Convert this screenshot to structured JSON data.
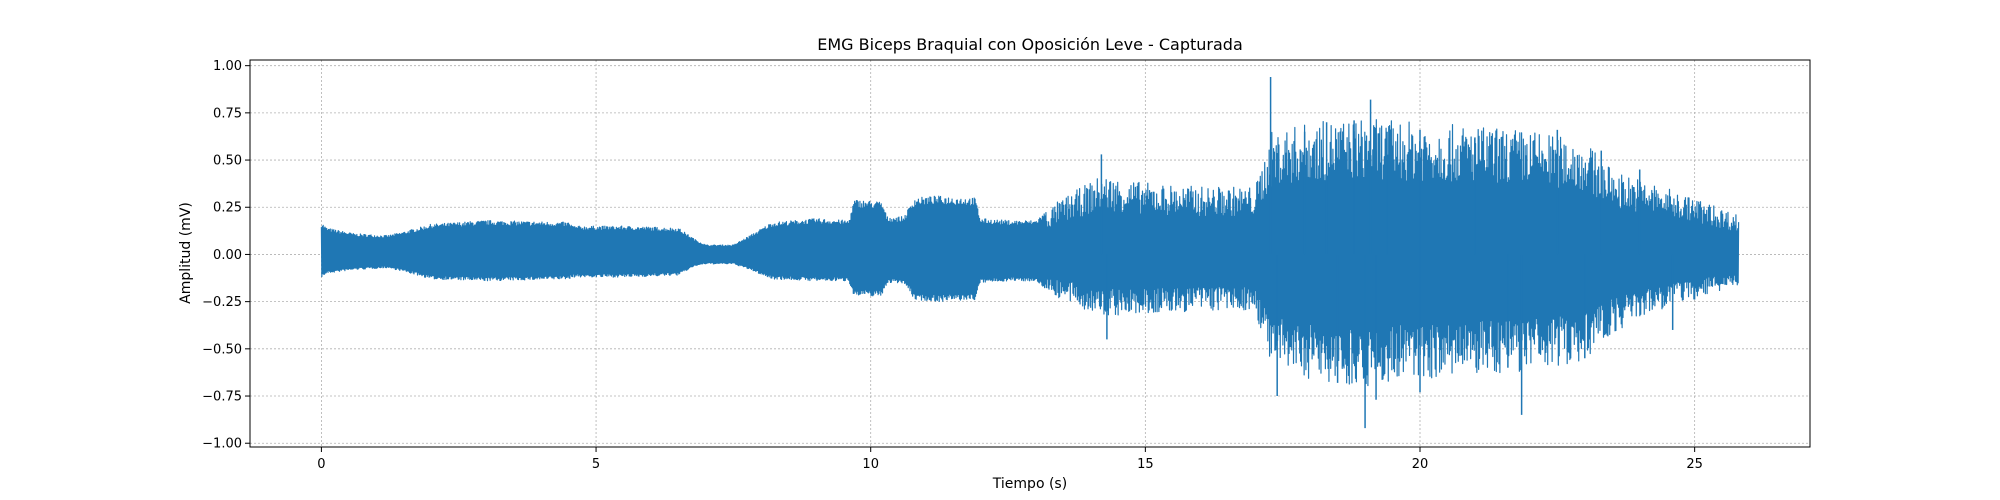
{
  "chart_data": {
    "type": "line",
    "title": "EMG Biceps Braquial con Oposición Leve - Capturada",
    "xlabel": "Tiempo (s)",
    "ylabel": "Amplitud (mV)",
    "xlim": [
      -1.3,
      27.1
    ],
    "ylim": [
      -1.02,
      1.03
    ],
    "xticks": [
      0,
      5,
      10,
      15,
      20,
      25
    ],
    "xtick_labels": [
      "0",
      "5",
      "10",
      "15",
      "20",
      "25"
    ],
    "yticks": [
      1.0,
      0.75,
      0.5,
      0.25,
      0.0,
      -0.25,
      -0.5,
      -0.75,
      -1.0
    ],
    "ytick_labels": [
      "1.00",
      "0.75",
      "0.50",
      "0.25",
      "0.00",
      "−0.25",
      "−0.50",
      "−0.75",
      "−1.00"
    ],
    "grid": true,
    "legend": "none",
    "series_color": "#1f77b4",
    "series": [
      {
        "x_range": [
          0,
          25.8
        ],
        "envelope": {
          "t": [
            0.0,
            0.1,
            0.6,
            1.2,
            1.5,
            2.0,
            3.0,
            4.5,
            4.6,
            5.5,
            6.5,
            6.8,
            7.0,
            7.5,
            7.8,
            8.2,
            9.0,
            9.6,
            9.7,
            10.2,
            10.3,
            10.6,
            10.8,
            11.2,
            11.9,
            12.0,
            12.5,
            13.0,
            13.4,
            13.8,
            14.2,
            15.0,
            16.0,
            17.0,
            17.3,
            18.0,
            19.0,
            20.0,
            21.0,
            22.0,
            23.0,
            23.5,
            24.0,
            24.5,
            25.0,
            25.8
          ],
          "upper": [
            0.17,
            0.14,
            0.11,
            0.1,
            0.12,
            0.16,
            0.18,
            0.17,
            0.15,
            0.15,
            0.14,
            0.08,
            0.05,
            0.05,
            0.1,
            0.17,
            0.19,
            0.18,
            0.29,
            0.28,
            0.2,
            0.2,
            0.3,
            0.31,
            0.3,
            0.19,
            0.18,
            0.18,
            0.28,
            0.35,
            0.42,
            0.38,
            0.36,
            0.36,
            0.65,
            0.7,
            0.72,
            0.7,
            0.68,
            0.66,
            0.6,
            0.45,
            0.4,
            0.35,
            0.3,
            0.21
          ],
          "lower": [
            -0.12,
            -0.1,
            -0.08,
            -0.07,
            -0.09,
            -0.13,
            -0.14,
            -0.13,
            -0.12,
            -0.12,
            -0.11,
            -0.06,
            -0.05,
            -0.05,
            -0.08,
            -0.13,
            -0.14,
            -0.14,
            -0.22,
            -0.22,
            -0.15,
            -0.15,
            -0.24,
            -0.25,
            -0.24,
            -0.15,
            -0.14,
            -0.14,
            -0.23,
            -0.28,
            -0.33,
            -0.32,
            -0.3,
            -0.3,
            -0.6,
            -0.66,
            -0.7,
            -0.66,
            -0.64,
            -0.62,
            -0.56,
            -0.42,
            -0.34,
            -0.28,
            -0.24,
            -0.16
          ]
        },
        "peaks": [
          {
            "t": 14.2,
            "y": 0.53
          },
          {
            "t": 14.3,
            "y": -0.45
          },
          {
            "t": 17.28,
            "y": 0.94
          },
          {
            "t": 17.4,
            "y": -0.75
          },
          {
            "t": 17.9,
            "y": 0.65
          },
          {
            "t": 18.3,
            "y": 0.7
          },
          {
            "t": 18.5,
            "y": -0.68
          },
          {
            "t": 18.8,
            "y": 0.71
          },
          {
            "t": 19.0,
            "y": -0.92
          },
          {
            "t": 19.1,
            "y": 0.82
          },
          {
            "t": 19.2,
            "y": -0.77
          },
          {
            "t": 19.4,
            "y": 0.65
          },
          {
            "t": 20.0,
            "y": 0.66
          },
          {
            "t": 20.0,
            "y": -0.73
          },
          {
            "t": 21.0,
            "y": 0.62
          },
          {
            "t": 21.6,
            "y": -0.6
          },
          {
            "t": 21.85,
            "y": -0.85
          },
          {
            "t": 22.5,
            "y": 0.66
          },
          {
            "t": 23.0,
            "y": -0.55
          },
          {
            "t": 23.3,
            "y": 0.55
          },
          {
            "t": 24.0,
            "y": 0.45
          },
          {
            "t": 24.6,
            "y": -0.4
          }
        ]
      }
    ]
  }
}
